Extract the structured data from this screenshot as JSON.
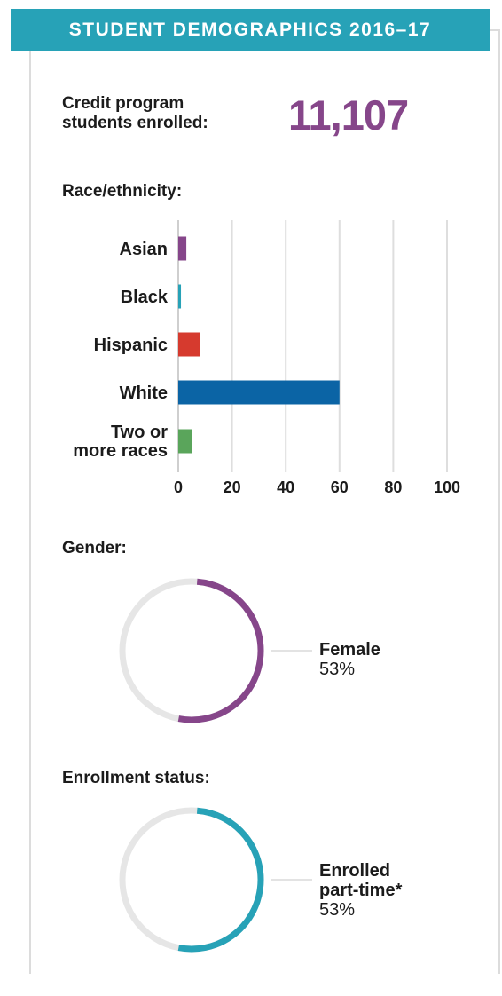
{
  "header": {
    "title": "STUDENT DEMOGRAPHICS 2016–17"
  },
  "credit": {
    "label_line1": "Credit program",
    "label_line2": "students enrolled:",
    "value": "11,107"
  },
  "race": {
    "title": "Race/ethnicity:"
  },
  "gender": {
    "title": "Gender:",
    "name": "Female",
    "pct_label": "53%"
  },
  "enrollment": {
    "title": "Enrollment status:",
    "name_line1": "Enrolled",
    "name_line2": "part-time*",
    "pct_label": "53%"
  },
  "chart_data": [
    {
      "type": "bar",
      "orientation": "horizontal",
      "categories": [
        "Asian",
        "Black",
        "Hispanic",
        "White",
        "Two or more races"
      ],
      "category_lines": [
        [
          "Asian"
        ],
        [
          "Black"
        ],
        [
          "Hispanic"
        ],
        [
          "White"
        ],
        [
          "Two or",
          "more races"
        ]
      ],
      "values": [
        3,
        1,
        8,
        60,
        5
      ],
      "colors": [
        "#86468a",
        "#27a2b7",
        "#d63a2e",
        "#0b64a5",
        "#5aa55b"
      ],
      "xlim": [
        0,
        100
      ],
      "xticks": [
        0,
        20,
        40,
        60,
        80,
        100
      ],
      "grid": true
    },
    {
      "type": "pie",
      "style": "donut",
      "slices": [
        {
          "label": "Female",
          "value": 53
        }
      ],
      "color": "#86468a",
      "track_color": "#e6e6e6"
    },
    {
      "type": "pie",
      "style": "donut",
      "slices": [
        {
          "label": "Enrolled part-time*",
          "value": 53
        }
      ],
      "color": "#27a2b7",
      "track_color": "#e6e6e6"
    }
  ]
}
